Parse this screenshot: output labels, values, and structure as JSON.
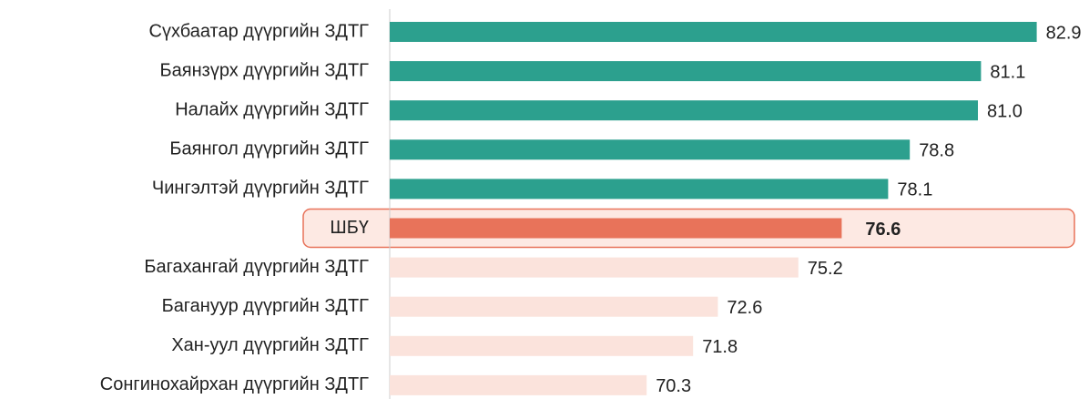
{
  "chart_data": {
    "type": "barh",
    "categories": [
      "Сүхбаатар дүүргийн ЗДТГ",
      "Баянзүрх дүүргийн ЗДТГ",
      "Налайх дүүргийн ЗДТГ",
      "Баянгол дүүргийн ЗДТГ",
      "Чингэлтэй дүүргийн ЗДТГ",
      "ШБҮ",
      "Багахангай дүүргийн ЗДТГ",
      "Багануур дүүргийн ЗДТГ",
      "Хан-уул дүүргийн ЗДТГ",
      "Сонгинохайрхан дүүргийн ЗДТГ"
    ],
    "values": [
      82.9,
      81.1,
      81.0,
      78.8,
      78.1,
      76.6,
      75.2,
      72.6,
      71.8,
      70.3
    ],
    "value_labels": [
      "82.9",
      "81.1",
      "81.0",
      "78.8",
      "78.1",
      "76.6",
      "75.2",
      "72.6",
      "71.8",
      "70.3"
    ],
    "colors": [
      "#2ca08e",
      "#2ca08e",
      "#2ca08e",
      "#2ca08e",
      "#2ca08e",
      "#e8735a",
      "#fbe3dc",
      "#fbe3dc",
      "#fbe3dc",
      "#fbe3dc"
    ],
    "highlight": 5,
    "xlim": [
      62,
      84.5
    ]
  }
}
